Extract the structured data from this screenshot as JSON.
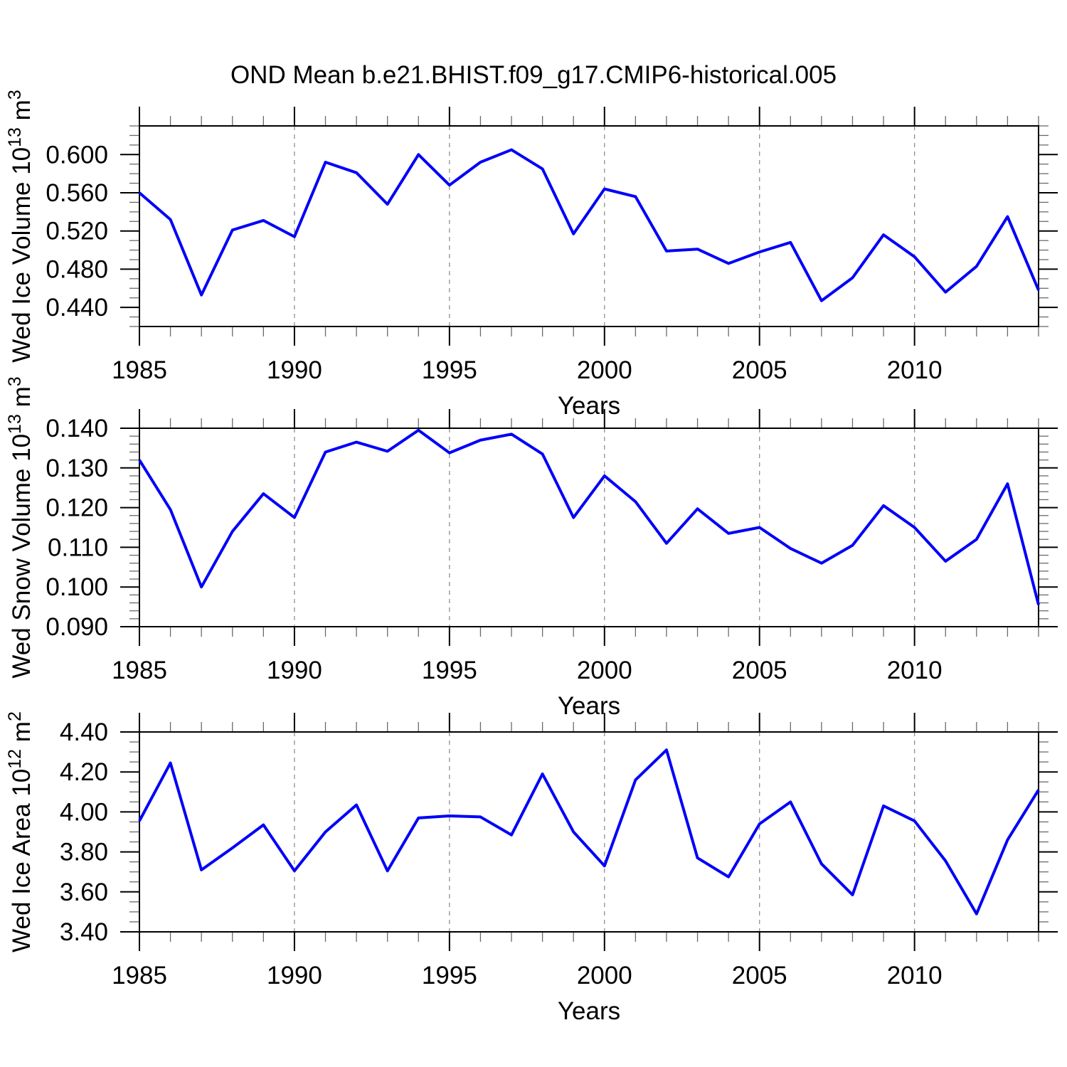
{
  "title": "OND Mean b.e21.BHIST.f09_g17.CMIP6-historical.005",
  "chart_data": [
    {
      "type": "line",
      "id": "ice-volume",
      "ylabel": "Wed Ice Volume 10^13 m^3",
      "ylabel_parts": {
        "pre": "Wed Ice Volume 10",
        "exp": "13",
        "unit": " m",
        "unit_exp": "3"
      },
      "xlabel": "Years",
      "line_color": "#0000f8",
      "xlim": [
        1985,
        2014
      ],
      "ylim": [
        0.42,
        0.63
      ],
      "xticks": [
        1985,
        1990,
        1995,
        2000,
        2005,
        2010
      ],
      "xtick_labels": [
        "1985",
        "1990",
        "1995",
        "2000",
        "2005",
        "2010"
      ],
      "grid_x": [
        1990,
        1995,
        2000,
        2005,
        2010
      ],
      "yticks": [
        0.44,
        0.48,
        0.52,
        0.56,
        0.6
      ],
      "ytick_labels": [
        "0.440",
        "0.480",
        "0.520",
        "0.560",
        "0.600"
      ],
      "y_minor_step": 0.01,
      "x": [
        1985,
        1986,
        1987,
        1988,
        1989,
        1990,
        1991,
        1992,
        1993,
        1994,
        1995,
        1996,
        1997,
        1998,
        1999,
        2000,
        2001,
        2002,
        2003,
        2004,
        2005,
        2006,
        2007,
        2008,
        2009,
        2010,
        2011,
        2012,
        2013,
        2014
      ],
      "values": [
        0.56,
        0.532,
        0.453,
        0.521,
        0.531,
        0.514,
        0.592,
        0.581,
        0.548,
        0.6,
        0.568,
        0.592,
        0.605,
        0.585,
        0.517,
        0.564,
        0.556,
        0.499,
        0.501,
        0.486,
        0.498,
        0.508,
        0.447,
        0.471,
        0.516,
        0.493,
        0.456,
        0.483,
        0.535,
        0.458
      ]
    },
    {
      "type": "line",
      "id": "snow-volume",
      "ylabel": "Wed Snow Volume 10^13 m^3",
      "ylabel_parts": {
        "pre": "Wed Snow Volume 10",
        "exp": "13",
        "unit": " m",
        "unit_exp": "3"
      },
      "xlabel": "Years",
      "line_color": "#0000f8",
      "xlim": [
        1985,
        2014
      ],
      "ylim": [
        0.09,
        0.14
      ],
      "xticks": [
        1985,
        1990,
        1995,
        2000,
        2005,
        2010
      ],
      "xtick_labels": [
        "1985",
        "1990",
        "1995",
        "2000",
        "2005",
        "2010"
      ],
      "grid_x": [
        1990,
        1995,
        2000,
        2005,
        2010
      ],
      "yticks": [
        0.09,
        0.1,
        0.11,
        0.12,
        0.13,
        0.14
      ],
      "ytick_labels": [
        "0.090",
        "0.100",
        "0.110",
        "0.120",
        "0.130",
        "0.140"
      ],
      "y_minor_step": 0.002,
      "x": [
        1985,
        1986,
        1987,
        1988,
        1989,
        1990,
        1991,
        1992,
        1993,
        1994,
        1995,
        1996,
        1997,
        1998,
        1999,
        2000,
        2001,
        2002,
        2003,
        2004,
        2005,
        2006,
        2007,
        2008,
        2009,
        2010,
        2011,
        2012,
        2013,
        2014
      ],
      "values": [
        0.132,
        0.1195,
        0.1,
        0.114,
        0.1235,
        0.1175,
        0.134,
        0.1365,
        0.1342,
        0.1395,
        0.1338,
        0.137,
        0.1385,
        0.1335,
        0.1175,
        0.128,
        0.1215,
        0.111,
        0.1197,
        0.1135,
        0.115,
        0.1097,
        0.106,
        0.1105,
        0.1205,
        0.115,
        0.1065,
        0.112,
        0.126,
        0.0955
      ]
    },
    {
      "type": "line",
      "id": "ice-area",
      "ylabel": "Wed Ice Area 10^12 m^2",
      "ylabel_parts": {
        "pre": "Wed Ice Area 10",
        "exp": "12",
        "unit": " m",
        "unit_exp": "2"
      },
      "xlabel": "Years",
      "line_color": "#0000f8",
      "xlim": [
        1985,
        2014
      ],
      "ylim": [
        3.4,
        4.4
      ],
      "xticks": [
        1985,
        1990,
        1995,
        2000,
        2005,
        2010
      ],
      "xtick_labels": [
        "1985",
        "1990",
        "1995",
        "2000",
        "2005",
        "2010"
      ],
      "grid_x": [
        1990,
        1995,
        2000,
        2005,
        2010
      ],
      "yticks": [
        3.4,
        3.6,
        3.8,
        4.0,
        4.2,
        4.4
      ],
      "ytick_labels": [
        "3.40",
        "3.60",
        "3.80",
        "4.00",
        "4.20",
        "4.40"
      ],
      "y_minor_step": 0.05,
      "x": [
        1985,
        1986,
        1987,
        1988,
        1989,
        1990,
        1991,
        1992,
        1993,
        1994,
        1995,
        1996,
        1997,
        1998,
        1999,
        2000,
        2001,
        2002,
        2003,
        2004,
        2005,
        2006,
        2007,
        2008,
        2009,
        2010,
        2011,
        2012,
        2013,
        2014
      ],
      "values": [
        3.955,
        4.245,
        3.71,
        3.82,
        3.935,
        3.705,
        3.9,
        4.035,
        3.705,
        3.97,
        3.98,
        3.975,
        3.885,
        4.19,
        3.9,
        3.73,
        4.16,
        4.31,
        3.77,
        3.675,
        3.94,
        4.05,
        3.74,
        3.585,
        4.03,
        3.955,
        3.755,
        3.49,
        3.86,
        4.11
      ]
    }
  ]
}
